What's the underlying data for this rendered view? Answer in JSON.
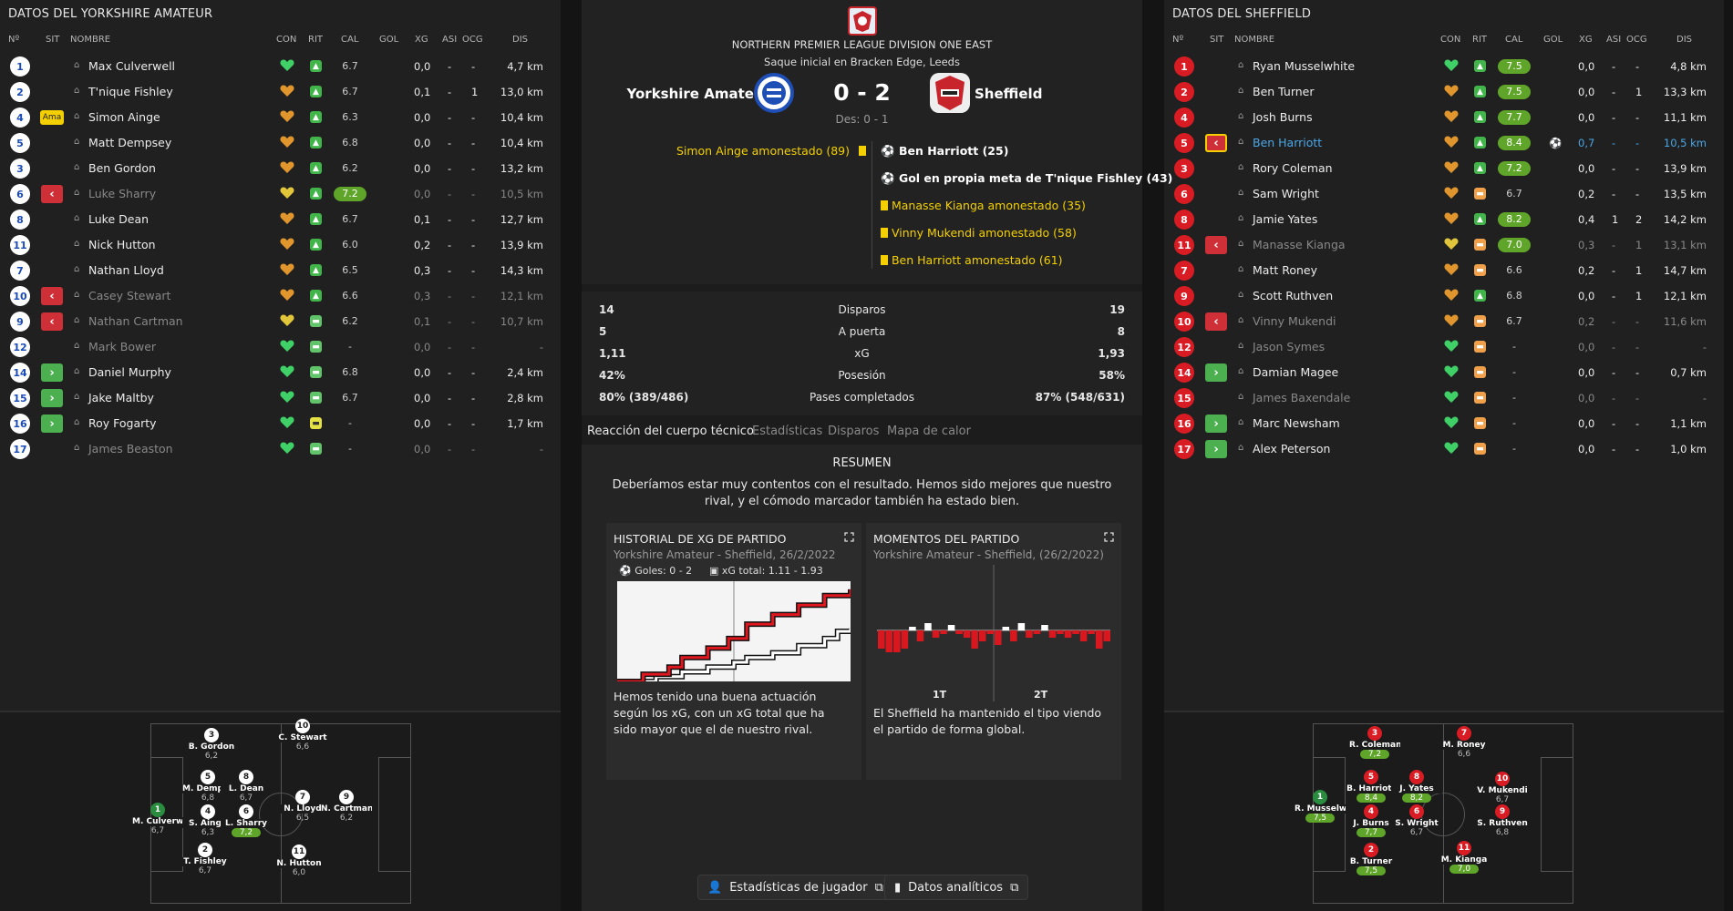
{
  "left": {
    "title": "DATOS DEL YORKSHIRE AMATEUR",
    "headers": {
      "num": "Nº",
      "sit": "SIT",
      "name": "NOMBRE",
      "con": "CON",
      "rit": "RIT",
      "cal": "CAL",
      "gol": "GOL",
      "xg": "XG",
      "asi": "ASI",
      "ocg": "OCG",
      "dis": "DIS"
    },
    "players": [
      {
        "num": "1",
        "sit": "",
        "name": "Max Culverwell",
        "con": "green",
        "rit": "up",
        "cal": "6.7",
        "hi": false,
        "gol": "",
        "xg": "0,0",
        "asi": "-",
        "ocg": "-",
        "dis": "4,7 km",
        "dim": false
      },
      {
        "num": "2",
        "sit": "",
        "name": "T'nique Fishley",
        "con": "orange",
        "rit": "up",
        "cal": "6.7",
        "hi": false,
        "gol": "",
        "xg": "0,1",
        "asi": "-",
        "ocg": "1",
        "dis": "13,0 km",
        "dim": false
      },
      {
        "num": "4",
        "sit": "Ama",
        "name": "Simon Ainge",
        "con": "orange",
        "rit": "up",
        "cal": "6.3",
        "hi": false,
        "gol": "",
        "xg": "0,0",
        "asi": "-",
        "ocg": "-",
        "dis": "10,4 km",
        "dim": false
      },
      {
        "num": "5",
        "sit": "",
        "name": "Matt Dempsey",
        "con": "orange",
        "rit": "up",
        "cal": "6.8",
        "hi": false,
        "gol": "",
        "xg": "0,0",
        "asi": "-",
        "ocg": "-",
        "dis": "10,4 km",
        "dim": false
      },
      {
        "num": "3",
        "sit": "",
        "name": "Ben Gordon",
        "con": "orange",
        "rit": "up",
        "cal": "6.2",
        "hi": false,
        "gol": "",
        "xg": "0,0",
        "asi": "-",
        "ocg": "-",
        "dis": "13,2 km",
        "dim": false
      },
      {
        "num": "6",
        "sit": "out",
        "name": "Luke Sharry",
        "con": "yellow",
        "rit": "up",
        "cal": "7.2",
        "hi": true,
        "gol": "",
        "xg": "0,0",
        "asi": "-",
        "ocg": "-",
        "dis": "10,5 km",
        "dim": true
      },
      {
        "num": "8",
        "sit": "",
        "name": "Luke Dean",
        "con": "orange",
        "rit": "up",
        "cal": "6.7",
        "hi": false,
        "gol": "",
        "xg": "0,1",
        "asi": "-",
        "ocg": "-",
        "dis": "12,7 km",
        "dim": false
      },
      {
        "num": "11",
        "sit": "",
        "name": "Nick Hutton",
        "con": "orange",
        "rit": "up",
        "cal": "6.0",
        "hi": false,
        "gol": "",
        "xg": "0,2",
        "asi": "-",
        "ocg": "-",
        "dis": "13,9 km",
        "dim": false
      },
      {
        "num": "7",
        "sit": "",
        "name": "Nathan Lloyd",
        "con": "orange",
        "rit": "up",
        "cal": "6.5",
        "hi": false,
        "gol": "",
        "xg": "0,3",
        "asi": "-",
        "ocg": "-",
        "dis": "14,3 km",
        "dim": false
      },
      {
        "num": "10",
        "sit": "out",
        "name": "Casey Stewart",
        "con": "orange",
        "rit": "up",
        "cal": "6.6",
        "hi": false,
        "gol": "",
        "xg": "0,3",
        "asi": "-",
        "ocg": "-",
        "dis": "12,1 km",
        "dim": true
      },
      {
        "num": "9",
        "sit": "out",
        "name": "Nathan Cartman",
        "con": "yellow",
        "rit": "flatg",
        "cal": "6.2",
        "hi": false,
        "gol": "",
        "xg": "0,1",
        "asi": "-",
        "ocg": "-",
        "dis": "10,7 km",
        "dim": true
      },
      {
        "num": "12",
        "sit": "",
        "name": "Mark Bower",
        "con": "green",
        "rit": "flatg",
        "cal": "-",
        "hi": false,
        "gol": "",
        "xg": "0,0",
        "asi": "-",
        "ocg": "-",
        "dis": "-",
        "dim": true
      },
      {
        "num": "14",
        "sit": "in",
        "name": "Daniel Murphy",
        "con": "green",
        "rit": "flatg",
        "cal": "6.8",
        "hi": false,
        "gol": "",
        "xg": "0,0",
        "asi": "-",
        "ocg": "-",
        "dis": "2,4 km",
        "dim": false
      },
      {
        "num": "15",
        "sit": "in",
        "name": "Jake Maltby",
        "con": "green",
        "rit": "flatg",
        "cal": "6.7",
        "hi": false,
        "gol": "",
        "xg": "0,0",
        "asi": "-",
        "ocg": "-",
        "dis": "2,8 km",
        "dim": false
      },
      {
        "num": "16",
        "sit": "in",
        "name": "Roy Fogarty",
        "con": "green",
        "rit": "flat",
        "cal": "-",
        "hi": false,
        "gol": "",
        "xg": "0,0",
        "asi": "-",
        "ocg": "-",
        "dis": "1,7 km",
        "dim": false
      },
      {
        "num": "17",
        "sit": "",
        "name": "James Beaston",
        "con": "green",
        "rit": "flatg",
        "cal": "-",
        "hi": false,
        "gol": "",
        "xg": "0,0",
        "asi": "-",
        "ocg": "-",
        "dis": "-",
        "dim": true
      }
    ],
    "pitch": [
      {
        "num": "1",
        "name": "M. Culverwell",
        "rating": "6,7",
        "hi": false,
        "gk": true
      },
      {
        "num": "3",
        "name": "B. Gordon",
        "rating": "6,2",
        "hi": false
      },
      {
        "num": "5",
        "name": "M. Dempsey",
        "rating": "6,8",
        "hi": false
      },
      {
        "num": "4",
        "name": "S. Ainge",
        "rating": "6,3",
        "hi": false
      },
      {
        "num": "2",
        "name": "T. Fishley",
        "rating": "6,7",
        "hi": false
      },
      {
        "num": "8",
        "name": "L. Dean",
        "rating": "6,7",
        "hi": false
      },
      {
        "num": "6",
        "name": "L. Sharry",
        "rating": "7,2",
        "hi": true
      },
      {
        "num": "10",
        "name": "C. Stewart",
        "rating": "6,6",
        "hi": false
      },
      {
        "num": "7",
        "name": "N. Lloyd",
        "rating": "6,5",
        "hi": false
      },
      {
        "num": "11",
        "name": "N. Hutton",
        "rating": "6,0",
        "hi": false
      },
      {
        "num": "9",
        "name": "N. Cartman",
        "rating": "6,2",
        "hi": false
      }
    ]
  },
  "right": {
    "title": "DATOS DEL SHEFFIELD",
    "headers": {
      "num": "Nº",
      "sit": "SIT",
      "name": "NOMBRE",
      "con": "CON",
      "rit": "RIT",
      "cal": "CAL",
      "gol": "GOL",
      "xg": "XG",
      "asi": "ASI",
      "ocg": "OCG",
      "dis": "DIS"
    },
    "players": [
      {
        "num": "1",
        "sit": "",
        "name": "Ryan Musselwhite",
        "con": "green",
        "rit": "up",
        "cal": "7.5",
        "hi": true,
        "gol": "",
        "xg": "0,0",
        "asi": "-",
        "ocg": "-",
        "dis": "4,8 km",
        "dim": false
      },
      {
        "num": "2",
        "sit": "",
        "name": "Ben Turner",
        "con": "orange",
        "rit": "up",
        "cal": "7.5",
        "hi": true,
        "gol": "",
        "xg": "0,0",
        "asi": "-",
        "ocg": "1",
        "dis": "13,3 km",
        "dim": false
      },
      {
        "num": "4",
        "sit": "",
        "name": "Josh Burns",
        "con": "orange",
        "rit": "up",
        "cal": "7.7",
        "hi": true,
        "gol": "",
        "xg": "0,0",
        "asi": "-",
        "ocg": "-",
        "dis": "11,1 km",
        "dim": false
      },
      {
        "num": "5",
        "sit": "outy",
        "name": "Ben Harriott",
        "con": "orange",
        "rit": "up",
        "cal": "8.4",
        "hi": true,
        "gol": "⚽",
        "xg": "0,7",
        "asi": "-",
        "ocg": "-",
        "dis": "10,5 km",
        "dim": false,
        "blue": true
      },
      {
        "num": "3",
        "sit": "",
        "name": "Rory Coleman",
        "con": "orange",
        "rit": "up",
        "cal": "7.2",
        "hi": true,
        "gol": "",
        "xg": "0,0",
        "asi": "-",
        "ocg": "-",
        "dis": "13,9 km",
        "dim": false
      },
      {
        "num": "6",
        "sit": "",
        "name": "Sam Wright",
        "con": "orange",
        "rit": "down",
        "cal": "6.7",
        "hi": false,
        "gol": "",
        "xg": "0,2",
        "asi": "-",
        "ocg": "-",
        "dis": "13,5 km",
        "dim": false
      },
      {
        "num": "8",
        "sit": "",
        "name": "Jamie Yates",
        "con": "orange",
        "rit": "up",
        "cal": "8.2",
        "hi": true,
        "gol": "",
        "xg": "0,4",
        "asi": "1",
        "ocg": "2",
        "dis": "14,2 km",
        "dim": false
      },
      {
        "num": "11",
        "sit": "out",
        "name": "Manasse Kianga",
        "con": "yellow",
        "rit": "down",
        "cal": "7.0",
        "hi": true,
        "gol": "",
        "xg": "0,3",
        "asi": "-",
        "ocg": "1",
        "dis": "13,1 km",
        "dim": true
      },
      {
        "num": "7",
        "sit": "",
        "name": "Matt Roney",
        "con": "orange",
        "rit": "down",
        "cal": "6.6",
        "hi": false,
        "gol": "",
        "xg": "0,2",
        "asi": "-",
        "ocg": "1",
        "dis": "14,7 km",
        "dim": false
      },
      {
        "num": "9",
        "sit": "",
        "name": "Scott Ruthven",
        "con": "orange",
        "rit": "up",
        "cal": "6.8",
        "hi": false,
        "gol": "",
        "xg": "0,0",
        "asi": "-",
        "ocg": "1",
        "dis": "12,1 km",
        "dim": false
      },
      {
        "num": "10",
        "sit": "out",
        "name": "Vinny Mukendi",
        "con": "orange",
        "rit": "down",
        "cal": "6.7",
        "hi": false,
        "gol": "",
        "xg": "0,2",
        "asi": "-",
        "ocg": "-",
        "dis": "11,6 km",
        "dim": true
      },
      {
        "num": "12",
        "sit": "",
        "name": "Jason Symes",
        "con": "green",
        "rit": "down",
        "cal": "-",
        "hi": false,
        "gol": "",
        "xg": "0,0",
        "asi": "-",
        "ocg": "-",
        "dis": "-",
        "dim": true
      },
      {
        "num": "14",
        "sit": "in",
        "name": "Damian Magee",
        "con": "green",
        "rit": "down",
        "cal": "-",
        "hi": false,
        "gol": "",
        "xg": "0,0",
        "asi": "-",
        "ocg": "-",
        "dis": "0,7 km",
        "dim": false
      },
      {
        "num": "15",
        "sit": "",
        "name": "James Baxendale",
        "con": "green",
        "rit": "down",
        "cal": "-",
        "hi": false,
        "gol": "",
        "xg": "0,0",
        "asi": "-",
        "ocg": "-",
        "dis": "-",
        "dim": true
      },
      {
        "num": "16",
        "sit": "in",
        "name": "Marc Newsham",
        "con": "green",
        "rit": "down",
        "cal": "-",
        "hi": false,
        "gol": "",
        "xg": "0,0",
        "asi": "-",
        "ocg": "-",
        "dis": "1,1 km",
        "dim": false
      },
      {
        "num": "17",
        "sit": "in",
        "name": "Alex Peterson",
        "con": "green",
        "rit": "down",
        "cal": "-",
        "hi": false,
        "gol": "",
        "xg": "0,0",
        "asi": "-",
        "ocg": "-",
        "dis": "1,0 km",
        "dim": false
      }
    ],
    "pitch": [
      {
        "num": "1",
        "name": "R. Musselwhi...",
        "rating": "7,5",
        "hi": true,
        "gk": true
      },
      {
        "num": "3",
        "name": "R. Coleman",
        "rating": "7,2",
        "hi": true
      },
      {
        "num": "5",
        "name": "B. Harriott",
        "rating": "8,4",
        "hi": true
      },
      {
        "num": "4",
        "name": "J. Burns",
        "rating": "7,7",
        "hi": true
      },
      {
        "num": "2",
        "name": "B. Turner",
        "rating": "7,5",
        "hi": true
      },
      {
        "num": "8",
        "name": "J. Yates",
        "rating": "8,2",
        "hi": true
      },
      {
        "num": "6",
        "name": "S. Wright",
        "rating": "6,7",
        "hi": false
      },
      {
        "num": "7",
        "name": "M. Roney",
        "rating": "6,6",
        "hi": false
      },
      {
        "num": "11",
        "name": "M. Kianga",
        "rating": "7,0",
        "hi": true
      },
      {
        "num": "10",
        "name": "V. Mukendi",
        "rating": "6,7",
        "hi": false
      },
      {
        "num": "9",
        "name": "S. Ruthven",
        "rating": "6,8",
        "hi": false
      }
    ]
  },
  "match": {
    "league": "NORTHERN PREMIER LEAGUE DIVISION ONE EAST",
    "venue": "Saque inicial en Bracken Edge, Leeds",
    "home": "Yorkshire Amateur",
    "away": "Sheffield",
    "score": "0 - 2",
    "halftime": "Des: 0 - 1",
    "home_events": [
      "Simon Ainge amonestado (89)"
    ],
    "away_events": [
      {
        "icon": "goal",
        "text": "Ben Harriott (25)"
      },
      {
        "icon": "owngoal",
        "text": "Gol en propia meta de T'nique Fishley (43)"
      },
      {
        "icon": "card",
        "text": "Manasse Kianga amonestado (35)"
      },
      {
        "icon": "card",
        "text": "Vinny Mukendi amonestado (58)"
      },
      {
        "icon": "card",
        "text": "Ben Harriott amonestado (61)"
      }
    ],
    "colors": {
      "home": "#1d4fb7",
      "away": "#c8242b",
      "accent": "#f4d000"
    }
  },
  "stats": [
    {
      "home": "14",
      "label": "Disparos",
      "away": "19"
    },
    {
      "home": "5",
      "label": "A puerta",
      "away": "8"
    },
    {
      "home": "1,11",
      "label": "xG",
      "away": "1,93"
    },
    {
      "home": "42%",
      "label": "Posesión",
      "away": "58%"
    },
    {
      "home": "80% (389/486)",
      "label": "Pases completados",
      "away": "87% (548/631)"
    }
  ],
  "tabs": [
    "Reacción del cuerpo técnico",
    "Estadísticas",
    "Disparos",
    "Mapa de calor"
  ],
  "coach": {
    "heading": "RESUMEN",
    "text": "Deberíamos estar muy contentos con el resultado. Hemos sido mejores que nuestro rival, y el cómodo marcador también ha estado bien."
  },
  "xg_card": {
    "title": "HISTORIAL DE XG DE PARTIDO",
    "subtitle": "Yorkshire Amateur - Sheffield, 26/2/2022",
    "goals": "Goles: 0 - 2",
    "xg_total": "xG total: 1.11 - 1.93",
    "text": "Hemos tenido una buena actuación según los xG, con un xG total que ha sido mayor que el de nuestro rival."
  },
  "moments_card": {
    "title": "MOMENTOS DEL PARTIDO",
    "subtitle": "Yorkshire Amateur - Sheffield, (26/2/2022)",
    "h1": "1T",
    "h2": "2T",
    "text": "El Sheffield ha mantenido el tipo viendo el partido de forma global."
  },
  "chart_data": [
    {
      "type": "line",
      "series": [
        {
          "name": "Yorkshire Amateur",
          "x": [
            0,
            15,
            25,
            35,
            45,
            50,
            60,
            70,
            80,
            85,
            90
          ],
          "y": [
            0,
            0.1,
            0.2,
            0.3,
            0.4,
            0.5,
            0.6,
            0.75,
            0.9,
            1.05,
            1.11
          ]
        },
        {
          "name": "Sheffield",
          "x": [
            0,
            10,
            20,
            25,
            35,
            43,
            50,
            60,
            70,
            80,
            90
          ],
          "y": [
            0,
            0.15,
            0.3,
            0.5,
            0.7,
            0.9,
            1.2,
            1.4,
            1.6,
            1.8,
            1.93
          ]
        }
      ]
    },
    {
      "type": "bar",
      "x": [
        2,
        5,
        8,
        11,
        14,
        17,
        20,
        23,
        26,
        29,
        32,
        35,
        38,
        41,
        44,
        47,
        50,
        53,
        56,
        59,
        62,
        65,
        68,
        71,
        74,
        77,
        80,
        83,
        86,
        89
      ],
      "values": [
        -0.5,
        -0.6,
        -0.6,
        -0.5,
        0.1,
        -0.3,
        0.2,
        -0.2,
        -0.1,
        0.15,
        -0.1,
        -0.2,
        -0.5,
        -0.3,
        -0.1,
        -0.4,
        0.1,
        -0.3,
        0.2,
        -0.2,
        -0.1,
        0.15,
        -0.2,
        -0.1,
        -0.2,
        -0.1,
        -0.3,
        -0.1,
        -0.5,
        -0.3
      ]
    }
  ],
  "buttons": {
    "player_stats": "Estadísticas de jugador",
    "analytics": "Datos analíticos"
  }
}
